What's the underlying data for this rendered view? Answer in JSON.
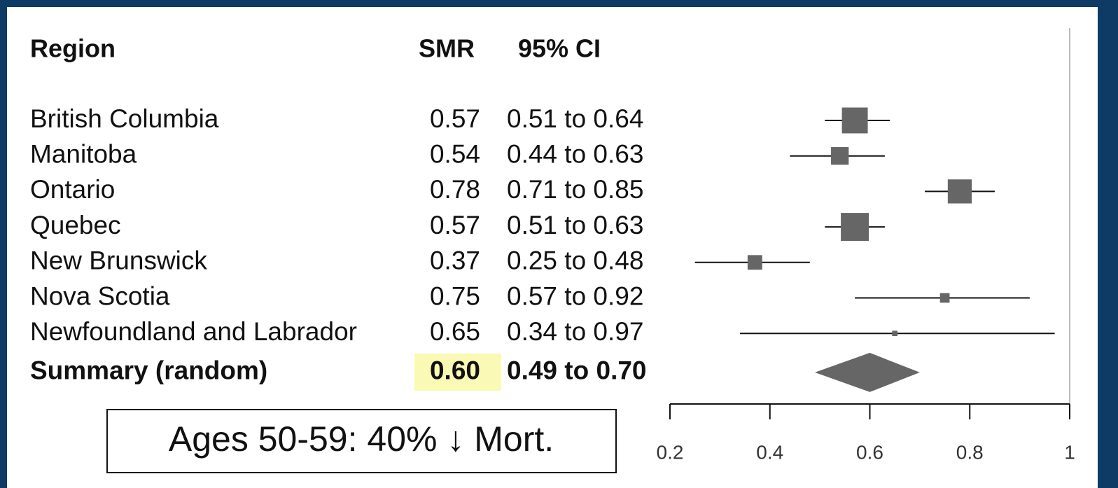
{
  "chart_data": {
    "type": "forest",
    "headers": {
      "region": "Region",
      "smr": "SMR",
      "ci": "95% CI"
    },
    "categories": [
      "British Columbia",
      "Manitoba",
      "Ontario",
      "Quebec",
      "New Brunswick",
      "Nova Scotia",
      "Newfoundland and Labrador"
    ],
    "values": [
      0.57,
      0.54,
      0.78,
      0.57,
      0.37,
      0.75,
      0.65
    ],
    "ci_low": [
      0.51,
      0.44,
      0.71,
      0.51,
      0.25,
      0.57,
      0.34
    ],
    "ci_high": [
      0.64,
      0.63,
      0.85,
      0.63,
      0.48,
      0.92,
      0.97
    ],
    "ci_labels": [
      "0.51 to 0.64",
      "0.44 to 0.63",
      "0.71 to 0.85",
      "0.51 to 0.63",
      "0.25 to 0.48",
      "0.57 to 0.92",
      "0.34 to 0.97"
    ],
    "summary": {
      "name": "Summary (random)",
      "value": 0.6,
      "value_label": "0.60",
      "ci_low": 0.49,
      "ci_high": 0.7,
      "ci_label": "0.49 to 0.70",
      "highlight": "#fafab4"
    },
    "color": "#666666",
    "xlim": [
      0.2,
      1
    ],
    "xticks": [
      0.2,
      0.4,
      0.6,
      0.8,
      1
    ],
    "annotation": "Ages 50-59: 40% ↓ Mort."
  }
}
